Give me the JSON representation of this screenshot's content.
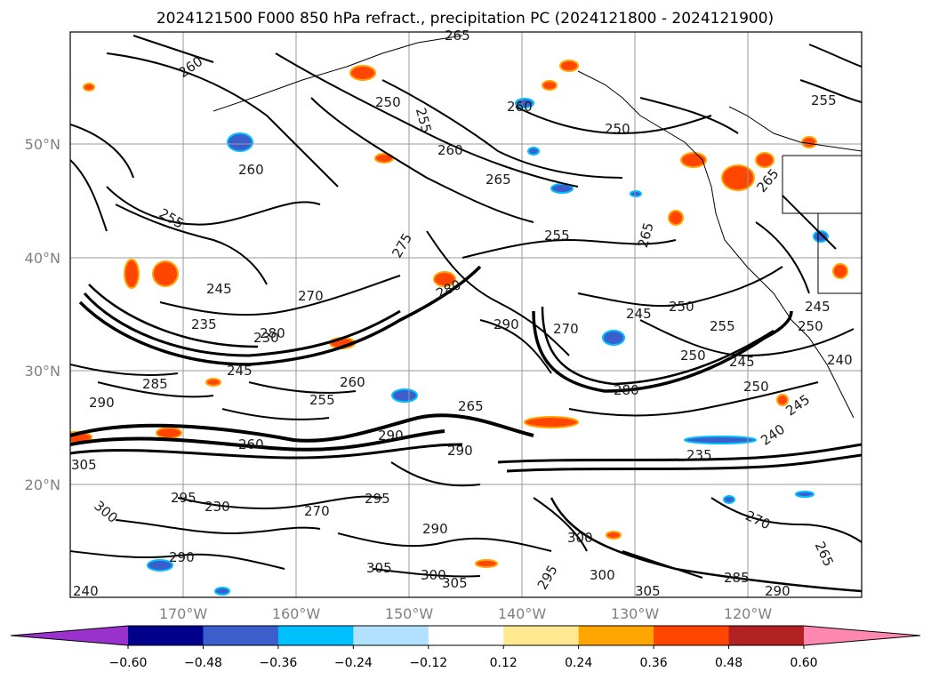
{
  "title": "2024121500 F000 850 hPa refract., precipitation PC (2024121800 - 2024121900)",
  "map": {
    "lat_ticks": [
      "50°N",
      "40°N",
      "30°N",
      "20°N"
    ],
    "lon_ticks": [
      "170°W",
      "160°W",
      "150°W",
      "140°W",
      "130°W",
      "120°W"
    ],
    "contour_labels": [
      "265",
      "260",
      "250",
      "255",
      "260",
      "265",
      "260",
      "255",
      "250",
      "260",
      "265",
      "265",
      "255",
      "270",
      "245",
      "275",
      "280",
      "290",
      "270",
      "235",
      "230",
      "245",
      "250",
      "255",
      "245",
      "250",
      "245",
      "240",
      "250",
      "235",
      "240",
      "285",
      "290",
      "260",
      "255",
      "265",
      "280",
      "290",
      "295",
      "300",
      "305",
      "290",
      "295",
      "300",
      "305",
      "295",
      "300",
      "305",
      "270",
      "265",
      "285",
      "290",
      "300",
      "305",
      "290",
      "240",
      "245",
      "260",
      "270",
      "280",
      "230",
      "290",
      "250",
      "245",
      "255"
    ],
    "gridlines": "on",
    "coastlines": "on"
  },
  "colorbar": {
    "ticks": [
      "−0.60",
      "−0.48",
      "−0.36",
      "−0.24",
      "−0.12",
      "0.12",
      "0.24",
      "0.36",
      "0.48",
      "0.60"
    ],
    "colors": [
      "#9932cc",
      "#00008b",
      "#3a5fcd",
      "#00bfff",
      "#b0e2ff",
      "#ffffff",
      "#ffe88f",
      "#ffa500",
      "#ff4500",
      "#b22222",
      "#ff88b0"
    ],
    "extend": "both"
  }
}
